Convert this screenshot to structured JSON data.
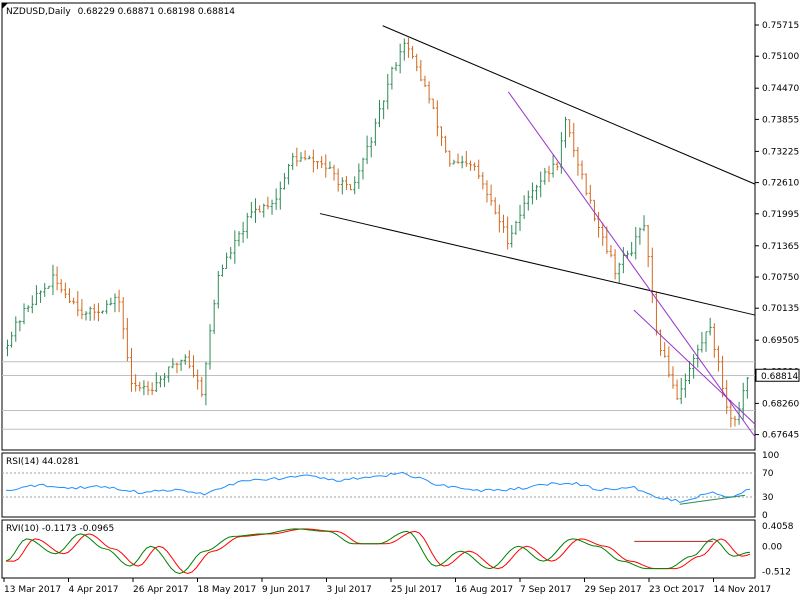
{
  "chart_data": {
    "type": "ohlc",
    "header": {
      "symbol": "NZDUSD,Daily",
      "ohlc_text": "0.68229 0.68871 0.68198 0.68814"
    },
    "price_axis": {
      "ylim": [
        0.6742,
        0.7605
      ],
      "ticks": [
        "0.75715",
        "0.75100",
        "0.74470",
        "0.73855",
        "0.73225",
        "0.72610",
        "0.71995",
        "0.71365",
        "0.70750",
        "0.70135",
        "0.69505",
        "0.68890",
        "0.68260",
        "0.67645"
      ],
      "current_price_label": "0.68814",
      "current_price": 0.68814
    },
    "date_axis": {
      "labels": [
        "13 Mar 2017",
        "4 Apr 2017",
        "26 Apr 2017",
        "18 May 2017",
        "9 Jun 2017",
        "3 Jul 2017",
        "25 Jul 2017",
        "16 Aug 2017",
        "7 Sep 2017",
        "29 Sep 2017",
        "23 Oct 2017",
        "14 Nov 2017"
      ]
    },
    "price_series": {
      "bar_count": 180,
      "up_color": "#2e8b57",
      "down_color": "#d2691e",
      "anchors": [
        {
          "bar": 0,
          "price": 0.6935
        },
        {
          "bar": 6,
          "price": 0.702
        },
        {
          "bar": 12,
          "price": 0.707
        },
        {
          "bar": 20,
          "price": 0.7
        },
        {
          "bar": 28,
          "price": 0.703
        },
        {
          "bar": 31,
          "price": 0.686
        },
        {
          "bar": 36,
          "price": 0.686
        },
        {
          "bar": 44,
          "price": 0.692
        },
        {
          "bar": 48,
          "price": 0.685
        },
        {
          "bar": 52,
          "price": 0.708
        },
        {
          "bar": 60,
          "price": 0.72
        },
        {
          "bar": 66,
          "price": 0.723
        },
        {
          "bar": 70,
          "price": 0.731
        },
        {
          "bar": 77,
          "price": 0.73
        },
        {
          "bar": 84,
          "price": 0.724
        },
        {
          "bar": 90,
          "price": 0.737
        },
        {
          "bar": 94,
          "price": 0.748
        },
        {
          "bar": 97,
          "price": 0.754
        },
        {
          "bar": 102,
          "price": 0.745
        },
        {
          "bar": 108,
          "price": 0.73
        },
        {
          "bar": 114,
          "price": 0.729
        },
        {
          "bar": 122,
          "price": 0.715
        },
        {
          "bar": 128,
          "price": 0.725
        },
        {
          "bar": 134,
          "price": 0.73
        },
        {
          "bar": 136,
          "price": 0.738
        },
        {
          "bar": 142,
          "price": 0.722
        },
        {
          "bar": 148,
          "price": 0.709
        },
        {
          "bar": 152,
          "price": 0.713
        },
        {
          "bar": 155,
          "price": 0.718
        },
        {
          "bar": 158,
          "price": 0.696
        },
        {
          "bar": 163,
          "price": 0.684
        },
        {
          "bar": 168,
          "price": 0.693
        },
        {
          "bar": 171,
          "price": 0.698
        },
        {
          "bar": 175,
          "price": 0.682
        },
        {
          "bar": 177,
          "price": 0.679
        },
        {
          "bar": 180,
          "price": 0.6881
        }
      ]
    },
    "trendlines": [
      {
        "color": "#000000",
        "points": [
          [
            "25 Jul 2017",
            0.757
          ],
          [
            "end",
            0.7258
          ]
        ]
      },
      {
        "color": "#000000",
        "points": [
          [
            "3 Jul 2017",
            0.72
          ],
          [
            "end",
            0.7
          ]
        ]
      },
      {
        "color": "#9932cc",
        "points": [
          [
            "7 Sep 2017",
            0.744
          ],
          [
            "end",
            0.676
          ]
        ]
      },
      {
        "color": "#9932cc",
        "points": [
          [
            "23 Oct 2017",
            0.701
          ],
          [
            "end",
            0.6785
          ]
        ]
      }
    ],
    "horizontal_levels": [
      0.6908,
      0.6881,
      0.6812,
      0.6775
    ],
    "indicators": [
      {
        "name": "RSI(14)",
        "label": "RSI(14) 44.0281",
        "ylim": [
          0,
          100
        ],
        "ticks": [
          "100",
          "70",
          "30",
          "0"
        ],
        "levels": [
          70,
          30
        ],
        "line_color": "#1e90ff",
        "anchors": [
          {
            "bar": 0,
            "value": 40
          },
          {
            "bar": 8,
            "value": 50
          },
          {
            "bar": 16,
            "value": 45
          },
          {
            "bar": 24,
            "value": 48
          },
          {
            "bar": 32,
            "value": 38
          },
          {
            "bar": 40,
            "value": 42
          },
          {
            "bar": 48,
            "value": 35
          },
          {
            "bar": 56,
            "value": 55
          },
          {
            "bar": 64,
            "value": 60
          },
          {
            "bar": 72,
            "value": 65
          },
          {
            "bar": 80,
            "value": 58
          },
          {
            "bar": 88,
            "value": 62
          },
          {
            "bar": 96,
            "value": 70
          },
          {
            "bar": 104,
            "value": 52
          },
          {
            "bar": 112,
            "value": 42
          },
          {
            "bar": 120,
            "value": 40
          },
          {
            "bar": 128,
            "value": 48
          },
          {
            "bar": 136,
            "value": 55
          },
          {
            "bar": 144,
            "value": 42
          },
          {
            "bar": 152,
            "value": 45
          },
          {
            "bar": 158,
            "value": 30
          },
          {
            "bar": 164,
            "value": 22
          },
          {
            "bar": 170,
            "value": 38
          },
          {
            "bar": 175,
            "value": 30
          },
          {
            "bar": 180,
            "value": 44
          }
        ],
        "trendline": {
          "color": "#2e8b57",
          "points": [
            [
              163,
              18
            ],
            [
              "end",
              33
            ]
          ]
        }
      },
      {
        "name": "RVI(10)",
        "label": "RVI(10) -0.1173 -0.0965",
        "ylim": [
          -0.6,
          0.47
        ],
        "ticks": [
          "0.4058",
          "0.00",
          "-0.512"
        ],
        "main_color": "#008000",
        "signal_color": "#ff0000",
        "anchors": [
          {
            "bar": 0,
            "value": -0.3
          },
          {
            "bar": 5,
            "value": 0.15
          },
          {
            "bar": 12,
            "value": -0.15
          },
          {
            "bar": 18,
            "value": 0.25
          },
          {
            "bar": 24,
            "value": -0.05
          },
          {
            "bar": 30,
            "value": -0.4
          },
          {
            "bar": 35,
            "value": 0.0
          },
          {
            "bar": 42,
            "value": -0.55
          },
          {
            "bar": 48,
            "value": -0.1
          },
          {
            "bar": 55,
            "value": 0.2
          },
          {
            "bar": 62,
            "value": 0.25
          },
          {
            "bar": 70,
            "value": 0.35
          },
          {
            "bar": 78,
            "value": 0.3
          },
          {
            "bar": 84,
            "value": 0.05
          },
          {
            "bar": 90,
            "value": 0.05
          },
          {
            "bar": 97,
            "value": 0.3
          },
          {
            "bar": 104,
            "value": -0.4
          },
          {
            "bar": 110,
            "value": -0.1
          },
          {
            "bar": 117,
            "value": -0.45
          },
          {
            "bar": 124,
            "value": 0.0
          },
          {
            "bar": 130,
            "value": -0.3
          },
          {
            "bar": 137,
            "value": 0.15
          },
          {
            "bar": 143,
            "value": 0.0
          },
          {
            "bar": 149,
            "value": -0.3
          },
          {
            "bar": 155,
            "value": -0.45
          },
          {
            "bar": 160,
            "value": -0.45
          },
          {
            "bar": 166,
            "value": -0.2
          },
          {
            "bar": 171,
            "value": 0.15
          },
          {
            "bar": 176,
            "value": -0.2
          },
          {
            "bar": 180,
            "value": -0.12
          }
        ],
        "level_line": {
          "color": "#b22222",
          "value": 0.1,
          "from_bar": 152,
          "to_bar": 171
        }
      }
    ]
  },
  "colors": {
    "axis": "#000000",
    "grid_level": "#c0c0c0",
    "dotted_level": "#a0a0a0",
    "price_tag_bg": "#ffffff"
  }
}
